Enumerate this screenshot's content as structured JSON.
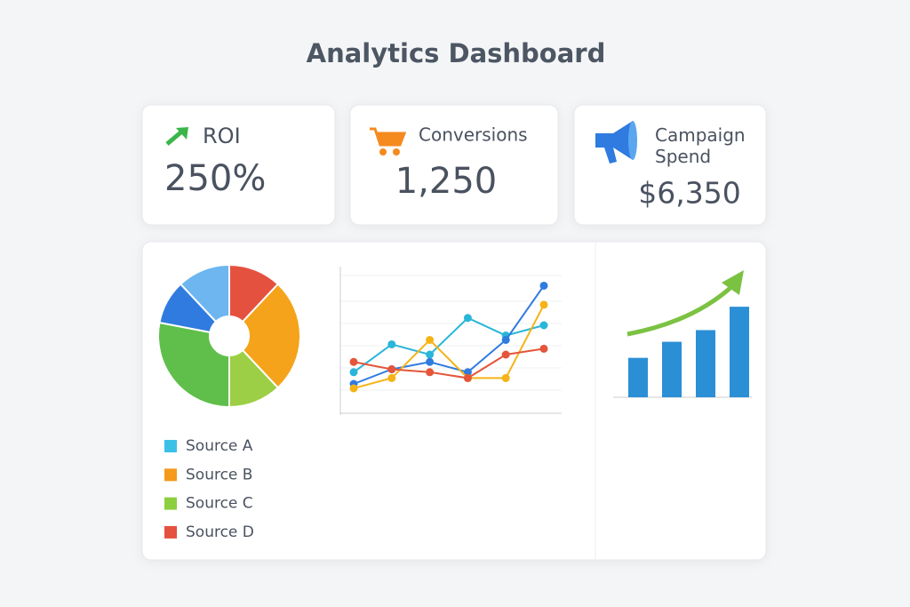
{
  "header": {
    "title": "Analytics Dashboard"
  },
  "cards": [
    {
      "label": "ROI",
      "value": "250%"
    },
    {
      "label": "Conversions",
      "value": "1,250"
    },
    {
      "label": "Campaign Spend",
      "value": "$6,350"
    }
  ],
  "chart_data": [
    {
      "type": "pie",
      "values": [
        12,
        26,
        12,
        28,
        10,
        12
      ],
      "colors": [
        "#e5513f",
        "#f5a31a",
        "#9ccf45",
        "#5fbf4a",
        "#2f7be0",
        "#6db6f0"
      ],
      "legend": [
        {
          "name": "Source A",
          "color": "#3cc0e8"
        },
        {
          "name": "Source B",
          "color": "#f59a1b"
        },
        {
          "name": "Source C",
          "color": "#8ccf3f"
        },
        {
          "name": "Source D",
          "color": "#e5513f"
        }
      ]
    },
    {
      "type": "line",
      "x": [
        0,
        1,
        2,
        3,
        4,
        5
      ],
      "xlim": [
        0,
        5
      ],
      "ylim": [
        0,
        100
      ],
      "series": [
        {
          "color": "#29b6d8",
          "values": [
            28,
            47,
            40,
            65,
            53,
            60
          ]
        },
        {
          "color": "#2f7be0",
          "values": [
            20,
            30,
            35,
            28,
            50,
            87
          ]
        },
        {
          "color": "#f5b316",
          "values": [
            17,
            24,
            50,
            24,
            24,
            74
          ]
        },
        {
          "color": "#e4553a",
          "values": [
            35,
            30,
            28,
            24,
            40,
            44
          ]
        }
      ]
    },
    {
      "type": "bar",
      "values": [
        27,
        38,
        46,
        62
      ],
      "color": "#2b8fd6",
      "ylim": [
        0,
        70
      ]
    }
  ]
}
